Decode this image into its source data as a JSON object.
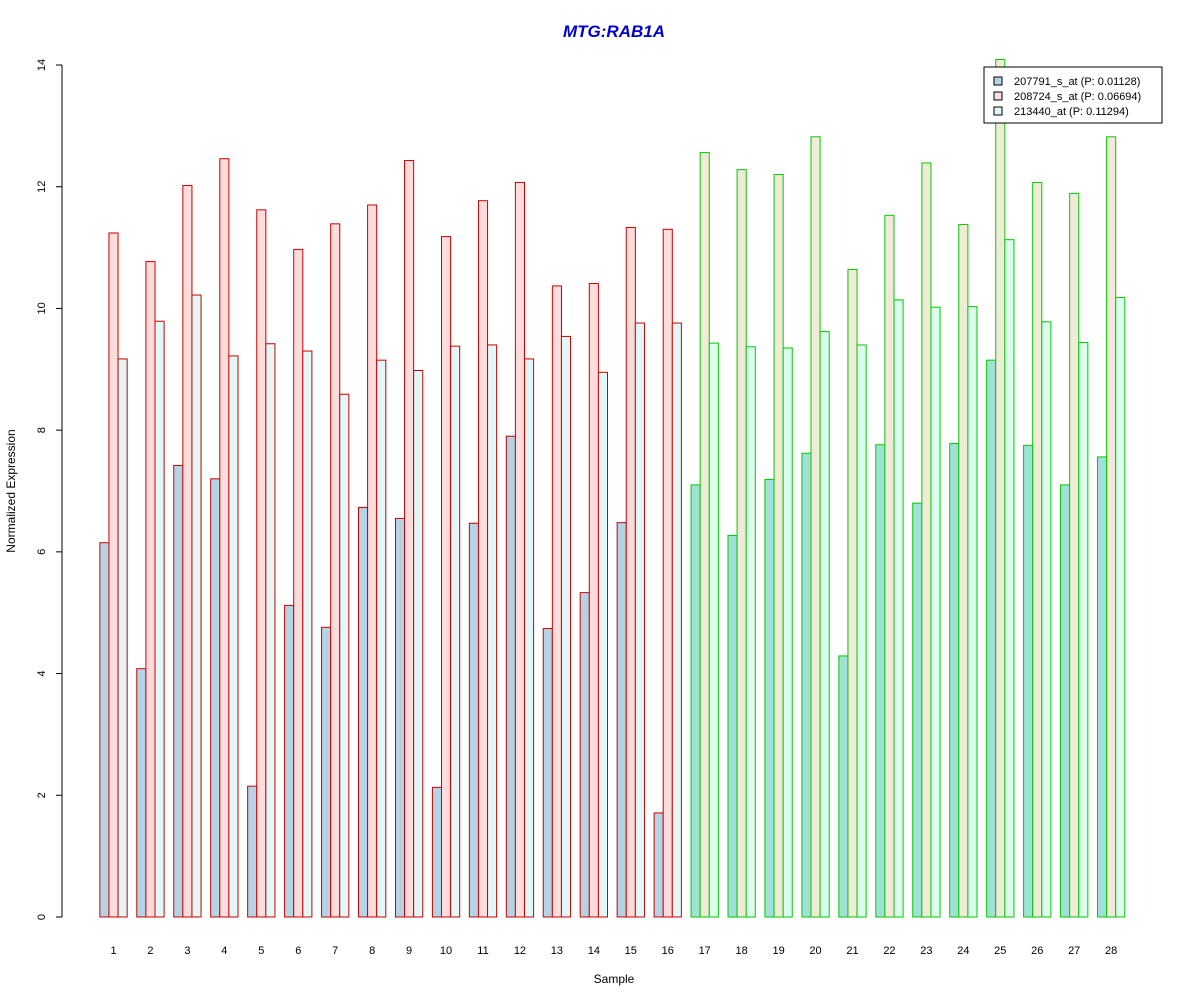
{
  "chart_data": {
    "type": "bar",
    "title": "MTG:RAB1A",
    "title_color": "#0000cc",
    "xlabel": "Sample",
    "ylabel": "Normalized Expression",
    "ylim": [
      0,
      14
    ],
    "yticks": [
      0,
      2,
      4,
      6,
      8,
      10,
      12,
      14
    ],
    "legend_position": "top-right",
    "grid": false,
    "categories": [
      "1",
      "2",
      "3",
      "4",
      "5",
      "6",
      "7",
      "8",
      "9",
      "10",
      "11",
      "12",
      "13",
      "14",
      "15",
      "16",
      "17",
      "18",
      "19",
      "20",
      "21",
      "22",
      "23",
      "24",
      "25",
      "26",
      "27",
      "28"
    ],
    "group_border_colors": {
      "1-16": "#cc0000",
      "17-28": "#00cc00"
    },
    "series": [
      {
        "name": "207791_s_at (P: 0.01128)",
        "fill_group1": "#b4d4e6",
        "fill_group2": "#a0e0d6",
        "legend_fill": "#b4d4e6",
        "values": [
          6.15,
          4.08,
          7.42,
          7.2,
          2.15,
          5.12,
          4.76,
          6.73,
          6.55,
          2.13,
          6.47,
          7.9,
          4.74,
          5.33,
          6.48,
          1.71,
          7.1,
          6.27,
          7.19,
          7.62,
          4.29,
          7.76,
          6.8,
          7.78,
          9.15,
          7.75,
          7.1,
          7.56
        ]
      },
      {
        "name": "208724_s_at (P: 0.06694)",
        "fill_group1": "#ffdcdc",
        "fill_group2": "#f2ead8",
        "legend_fill": "#ffdcdc",
        "values": [
          11.24,
          10.77,
          12.02,
          12.46,
          11.62,
          10.97,
          11.39,
          11.7,
          12.43,
          11.18,
          11.77,
          12.07,
          10.37,
          10.41,
          11.33,
          11.3,
          12.56,
          12.28,
          12.2,
          12.82,
          10.64,
          11.53,
          12.39,
          11.38,
          14.09,
          12.07,
          11.89,
          12.82
        ]
      },
      {
        "name": "213440_at (P: 0.11294)",
        "fill_group1": "#e2f8f8",
        "fill_group2": "#dcfcee",
        "legend_fill": "#e2f8f8",
        "values": [
          9.17,
          9.79,
          10.22,
          9.22,
          9.42,
          9.3,
          8.59,
          9.15,
          8.98,
          9.38,
          9.4,
          9.17,
          9.54,
          8.95,
          9.76,
          9.76,
          9.43,
          9.37,
          9.35,
          9.62,
          9.4,
          10.14,
          10.02,
          10.03,
          11.13,
          9.78,
          9.44,
          10.18
        ]
      }
    ]
  }
}
